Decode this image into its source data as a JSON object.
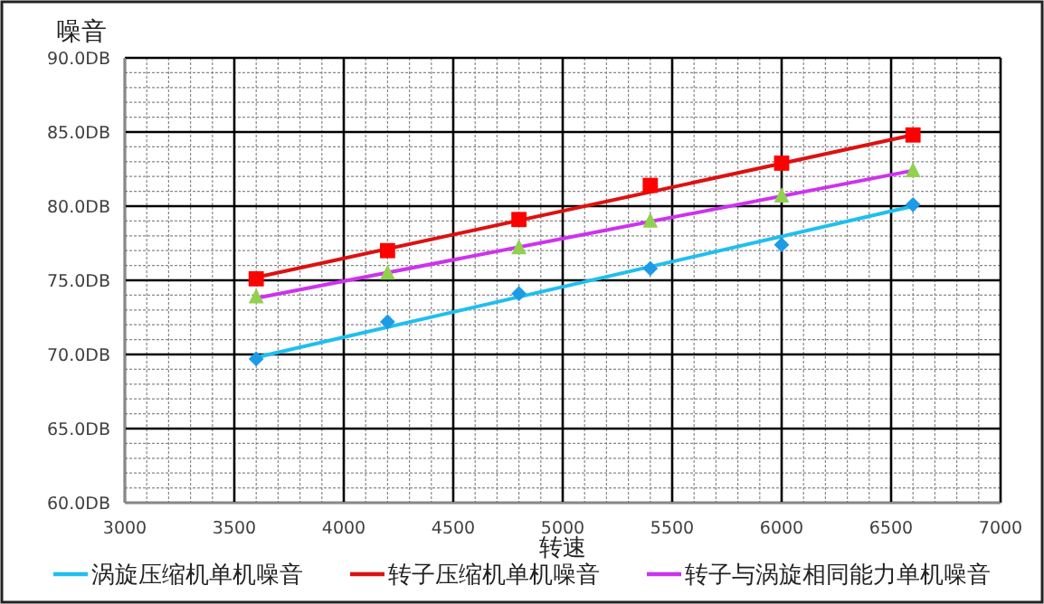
{
  "chart_data": {
    "type": "line",
    "xlabel": "转速",
    "ylabel": "噪音",
    "xlim": [
      3000,
      7000
    ],
    "xticks": [
      3000,
      3500,
      4000,
      4500,
      5000,
      5500,
      6000,
      6500,
      7000
    ],
    "ylim": [
      60,
      90
    ],
    "yticks": [
      {
        "value": 60,
        "label": "60.0DB"
      },
      {
        "value": 65,
        "label": "65.0DB"
      },
      {
        "value": 70,
        "label": "70.0DB"
      },
      {
        "value": 75,
        "label": "75.0DB"
      },
      {
        "value": 80,
        "label": "80.0DB"
      },
      {
        "value": 85,
        "label": "85.0DB"
      },
      {
        "value": 90,
        "label": "90.0DB"
      }
    ],
    "grid": true,
    "legend": "bottom",
    "series": [
      {
        "type": "scatter",
        "marker": "diamond",
        "color": "#1e9be6",
        "x": [
          3600,
          4200,
          4800,
          5400,
          6000,
          6600
        ],
        "values": [
          69.7,
          72.2,
          74.1,
          75.8,
          77.4,
          80.1
        ]
      },
      {
        "type": "scatter",
        "marker": "square",
        "color": "#ff0000",
        "x": [
          3600,
          4200,
          4800,
          5400,
          6000,
          6600
        ],
        "values": [
          75.1,
          77.0,
          79.1,
          81.4,
          82.9,
          84.8
        ]
      },
      {
        "type": "scatter",
        "marker": "triangle",
        "color": "#92d050",
        "x": [
          3600,
          4200,
          4800,
          5400,
          6000,
          6600
        ],
        "values": [
          73.9,
          75.5,
          77.2,
          79.0,
          80.7,
          82.4
        ]
      },
      {
        "name": "涡旋压缩机单机噪音",
        "color": "#1fbfef",
        "x": [
          3600,
          6600
        ],
        "values": [
          69.8,
          80.0
        ]
      },
      {
        "name": "转子压缩机单机噪音",
        "color": "#dd1111",
        "x": [
          3600,
          6600
        ],
        "values": [
          75.2,
          84.8
        ]
      },
      {
        "name": "转子与涡旋相同能力单机噪音",
        "color": "#cc33ee",
        "x": [
          3600,
          6600
        ],
        "values": [
          73.8,
          82.4
        ]
      }
    ]
  }
}
